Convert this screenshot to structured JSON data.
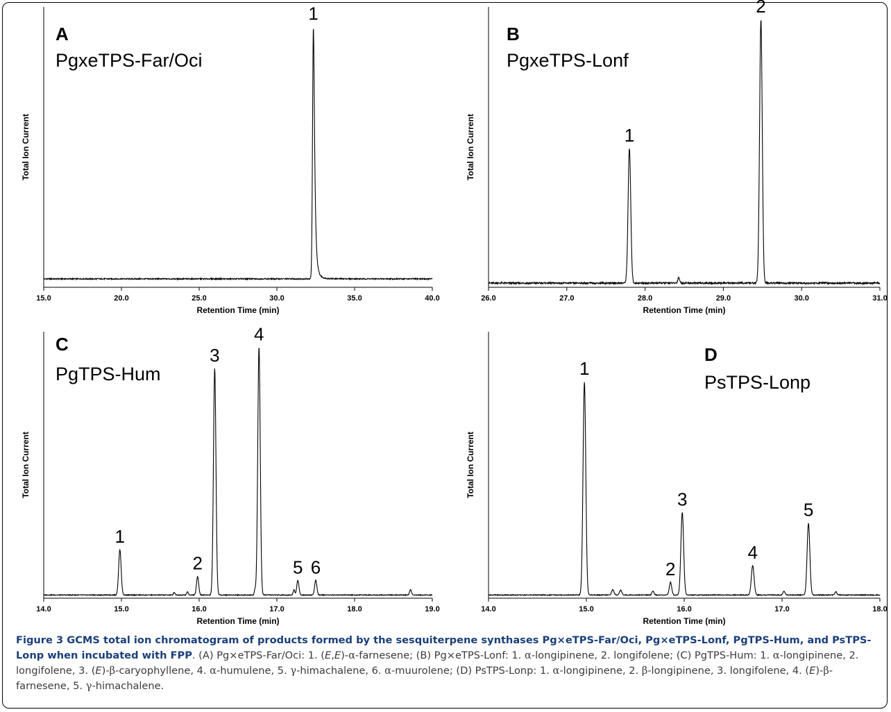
{
  "chart_data": [
    {
      "type": "line",
      "panel_letter": "A",
      "title": "PgxeTPS-Far/Oci",
      "xlabel": "Retention Time (min)",
      "ylabel": "Total Ion Current",
      "xlim": [
        15.0,
        40.0
      ],
      "x_ticks": [
        "15.0",
        "20.0",
        "25.0",
        "30.0",
        "35.0",
        "40.0"
      ],
      "baseline": 0.03,
      "noise": 0.002,
      "peaks": [
        {
          "label": "1",
          "x": 32.35,
          "height": 0.9,
          "width": 0.055,
          "tail": 0.22
        }
      ]
    },
    {
      "type": "line",
      "panel_letter": "B",
      "title": "PgxeTPS-Lonf",
      "xlabel": "Retention Time (min)",
      "ylabel": "Total Ion Current",
      "xlim": [
        26.0,
        31.0
      ],
      "x_ticks": [
        "26.0",
        "27.0",
        "28.0",
        "29.0",
        "30.0",
        "31.0"
      ],
      "baseline": 0.015,
      "noise": 0.003,
      "peaks": [
        {
          "label": "1",
          "x": 27.8,
          "height": 0.48,
          "width": 0.017,
          "tail": 0
        },
        {
          "label": "",
          "x": 28.43,
          "height": 0.02,
          "width": 0.012,
          "tail": 0
        },
        {
          "label": "2",
          "x": 29.48,
          "height": 0.94,
          "width": 0.017,
          "tail": 0
        }
      ]
    },
    {
      "type": "line",
      "panel_letter": "C",
      "title": "PgTPS-Hum",
      "xlabel": "Retention Time (min)",
      "ylabel": "Total Ion Current",
      "xlim": [
        14.0,
        19.0
      ],
      "x_ticks": [
        "14.0",
        "15.0",
        "16.0",
        "17.0",
        "18.0",
        "19.0"
      ],
      "baseline": 0.012,
      "noise": 0.0015,
      "peaks": [
        {
          "label": "1",
          "x": 14.98,
          "height": 0.17,
          "width": 0.016,
          "tail": 0
        },
        {
          "label": "",
          "x": 15.68,
          "height": 0.01,
          "width": 0.01,
          "tail": 0
        },
        {
          "label": "",
          "x": 15.85,
          "height": 0.012,
          "width": 0.01,
          "tail": 0
        },
        {
          "label": "2",
          "x": 15.98,
          "height": 0.07,
          "width": 0.014,
          "tail": 0
        },
        {
          "label": "3",
          "x": 16.2,
          "height": 0.85,
          "width": 0.016,
          "tail": 0
        },
        {
          "label": "",
          "x": 16.72,
          "height": 0.02,
          "width": 0.01,
          "tail": 0
        },
        {
          "label": "4",
          "x": 16.77,
          "height": 0.93,
          "width": 0.016,
          "tail": 0
        },
        {
          "label": "",
          "x": 17.22,
          "height": 0.02,
          "width": 0.01,
          "tail": 0
        },
        {
          "label": "5",
          "x": 17.27,
          "height": 0.055,
          "width": 0.014,
          "tail": 0
        },
        {
          "label": "6",
          "x": 17.5,
          "height": 0.055,
          "width": 0.014,
          "tail": 0
        },
        {
          "label": "",
          "x": 18.72,
          "height": 0.02,
          "width": 0.012,
          "tail": 0
        }
      ]
    },
    {
      "type": "line",
      "panel_letter": "D",
      "title": "PsTPS-Lonp",
      "xlabel": "Retention Time (min)",
      "ylabel": "Total Ion Current",
      "xlim": [
        14.0,
        18.0
      ],
      "x_ticks": [
        "14.0",
        "15.0",
        "16.0",
        "17.0",
        "18.0"
      ],
      "baseline": 0.012,
      "noise": 0.0015,
      "peaks": [
        {
          "label": "1",
          "x": 14.98,
          "height": 0.8,
          "width": 0.014,
          "tail": 0
        },
        {
          "label": "",
          "x": 15.27,
          "height": 0.02,
          "width": 0.012,
          "tail": 0
        },
        {
          "label": "",
          "x": 15.35,
          "height": 0.018,
          "width": 0.012,
          "tail": 0
        },
        {
          "label": "",
          "x": 15.68,
          "height": 0.015,
          "width": 0.01,
          "tail": 0
        },
        {
          "label": "2",
          "x": 15.86,
          "height": 0.048,
          "width": 0.012,
          "tail": 0
        },
        {
          "label": "3",
          "x": 15.98,
          "height": 0.31,
          "width": 0.014,
          "tail": 0
        },
        {
          "label": "4",
          "x": 16.7,
          "height": 0.11,
          "width": 0.014,
          "tail": 0
        },
        {
          "label": "",
          "x": 17.02,
          "height": 0.015,
          "width": 0.01,
          "tail": 0
        },
        {
          "label": "5",
          "x": 17.27,
          "height": 0.27,
          "width": 0.014,
          "tail": 0
        },
        {
          "label": "",
          "x": 17.55,
          "height": 0.012,
          "width": 0.01,
          "tail": 0
        }
      ]
    }
  ],
  "caption": {
    "lead": "Figure 3 GCMS total ion chromatogram of products formed by the sesquiterpene synthases Pg×eTPS-Far/Oci, Pg×eTPS-Lonf, PgTPS-Hum, and PsTPS-Lonp when incubated with FPP",
    "body_html": ". (A) Pg×eTPS-Far/Oci: 1. (<i>E</i>,<i>E</i>)-<span class=\"g\">α</span>-farnesene; (B) Pg×eTPS-Lonf: 1. <span class=\"g\">α</span>-longipinene, 2. longifolene; (C) PgTPS-Hum: 1. <span class=\"g\">α</span>-longipinene, 2. longifolene, 3. (<i>E</i>)-<span class=\"g\">β</span>-caryophyllene, 4. <span class=\"g\">α</span>-humulene, 5. <span class=\"g\">γ</span>-himachalene, 6. <span class=\"g\">α</span>-muurolene; (D) PsTPS-Lonp: 1. <span class=\"g\">α</span>-longipinene, 2. <span class=\"g\">β</span>-longipinene, 3. longifolene, 4. (<i>E</i>)-<span class=\"g\">β</span>-farnesene, 5. <span class=\"g\">γ</span>-himachalene."
  }
}
